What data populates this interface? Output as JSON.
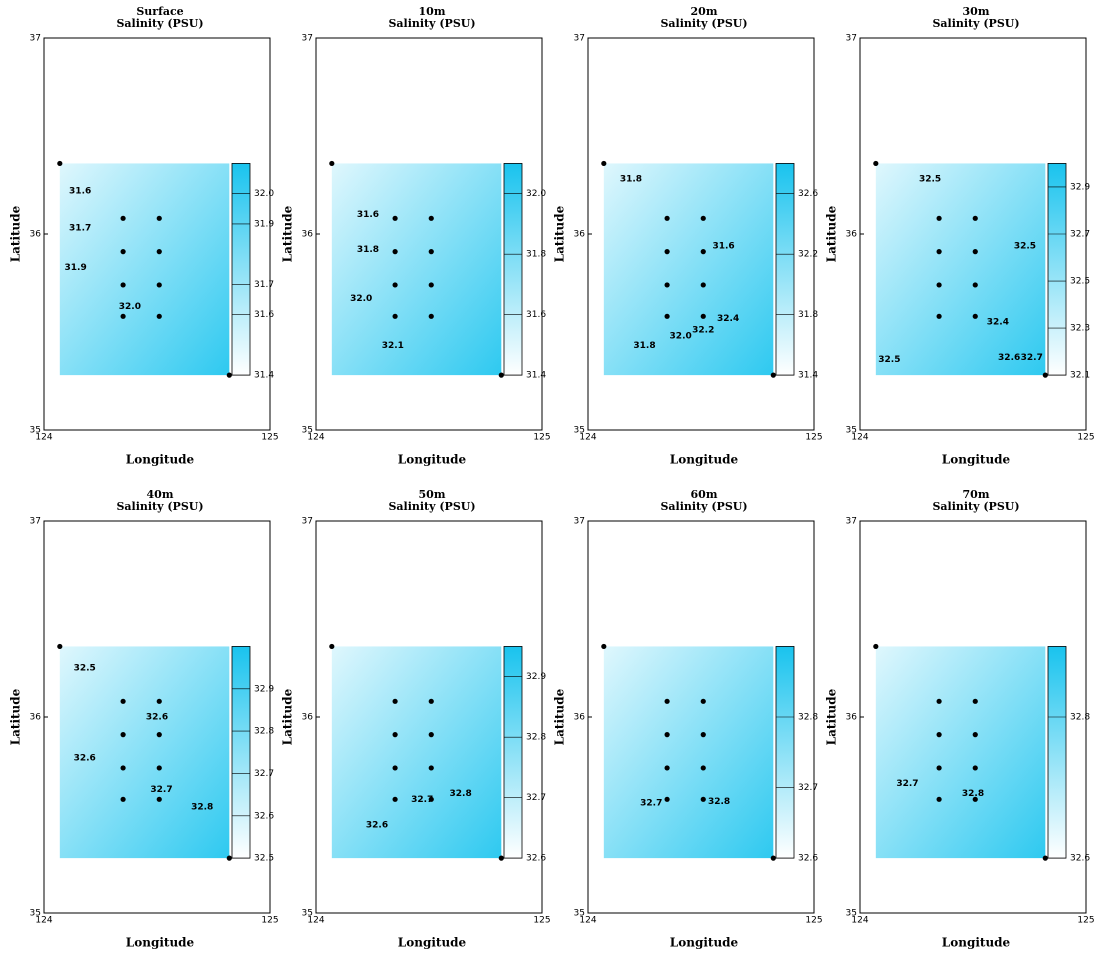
{
  "chart_data": {
    "type": "contour",
    "stations": {
      "x": [
        124.07,
        124.35,
        124.51,
        124.35,
        124.51,
        124.35,
        124.51,
        124.35,
        124.51,
        124.82
      ],
      "y": [
        36.36,
        36.08,
        36.08,
        35.91,
        35.91,
        35.74,
        35.74,
        35.58,
        35.58,
        35.28
      ]
    },
    "panels": [
      {
        "title": "Surface",
        "subtitle": "Salinity (PSU)",
        "xlabel": "Longitude",
        "ylabel": "Latitude",
        "xlim": [
          124,
          125
        ],
        "ylim": [
          35,
          37
        ],
        "xticks": [
          124,
          125
        ],
        "yticks": [
          35,
          36,
          37
        ],
        "clim": [
          31.4,
          32.1
        ],
        "cticks": [
          {
            "value": 32.0,
            "label": "32.0"
          },
          31.9,
          31.7,
          31.6,
          31.4
        ],
        "contour_labels": [
          {
            "value": 31.6,
            "label": "31.6",
            "x": 124.16,
            "y": 36.22
          },
          {
            "value": 31.7,
            "label": "31.7",
            "x": 124.16,
            "y": 36.03
          },
          {
            "value": 31.9,
            "label": "31.9",
            "x": 124.14,
            "y": 35.83
          },
          {
            "value": 32.0,
            "label": "32.0",
            "x": 124.38,
            "y": 35.63
          }
        ]
      },
      {
        "title": "10m",
        "subtitle": "Salinity (PSU)",
        "xlabel": "Longitude",
        "ylabel": "Latitude",
        "xlim": [
          124,
          125
        ],
        "ylim": [
          35,
          37
        ],
        "xticks": [
          124,
          125
        ],
        "yticks": [
          35,
          36,
          37
        ],
        "clim": [
          31.4,
          32.1
        ],
        "cticks": [
          {
            "value": 32.0,
            "label": "32.0"
          },
          31.8,
          31.6,
          31.4
        ],
        "contour_labels": [
          {
            "value": 31.6,
            "label": "31.6",
            "x": 124.23,
            "y": 36.1
          },
          {
            "value": 31.8,
            "label": "31.8",
            "x": 124.23,
            "y": 35.92
          },
          {
            "value": 32.0,
            "label": "32.0",
            "x": 124.2,
            "y": 35.67
          },
          {
            "value": 32.1,
            "label": "32.1",
            "x": 124.34,
            "y": 35.43
          }
        ]
      },
      {
        "title": "20m",
        "subtitle": "Salinity (PSU)",
        "xlabel": "Longitude",
        "ylabel": "Latitude",
        "xlim": [
          124,
          125
        ],
        "ylim": [
          35,
          37
        ],
        "xticks": [
          124,
          125
        ],
        "yticks": [
          35,
          36,
          37
        ],
        "clim": [
          31.4,
          32.8
        ],
        "cticks": [
          32.6,
          32.2,
          31.8,
          31.4
        ],
        "contour_labels": [
          {
            "value": 31.8,
            "label": "31.8",
            "x": 124.19,
            "y": 36.28
          },
          {
            "value": 31.6,
            "label": "31.6",
            "x": 124.6,
            "y": 35.94
          },
          {
            "value": 31.8,
            "label": "31.8",
            "x": 124.25,
            "y": 35.43
          },
          {
            "value": 32.0,
            "label": "32.0",
            "x": 124.41,
            "y": 35.48
          },
          {
            "value": 32.2,
            "label": "32.2",
            "x": 124.51,
            "y": 35.51
          },
          {
            "value": 32.4,
            "label": "32.4",
            "x": 124.62,
            "y": 35.57
          }
        ]
      },
      {
        "title": "30m",
        "subtitle": "Salinity (PSU)",
        "xlabel": "Longitude",
        "ylabel": "Latitude",
        "xlim": [
          124,
          125
        ],
        "ylim": [
          35,
          37
        ],
        "xticks": [
          124,
          125
        ],
        "yticks": [
          35,
          36,
          37
        ],
        "clim": [
          32.1,
          33.0
        ],
        "cticks": [
          32.9,
          32.7,
          32.5,
          32.3,
          32.1
        ],
        "contour_labels": [
          {
            "value": 32.5,
            "label": "32.5",
            "x": 124.31,
            "y": 36.28
          },
          {
            "value": 32.5,
            "label": "32.5",
            "x": 124.73,
            "y": 35.94
          },
          {
            "value": 32.4,
            "label": "32.4",
            "x": 124.61,
            "y": 35.55
          },
          {
            "value": 32.5,
            "label": "32.5",
            "x": 124.13,
            "y": 35.36
          },
          {
            "value": 32.6,
            "label": "32.6",
            "x": 124.66,
            "y": 35.37
          },
          {
            "value": 32.7,
            "label": "32.7",
            "x": 124.76,
            "y": 35.37
          }
        ]
      },
      {
        "title": "40m",
        "subtitle": "Salinity (PSU)",
        "xlabel": "Longitude",
        "ylabel": "Latitude",
        "xlim": [
          124,
          125
        ],
        "ylim": [
          35,
          37
        ],
        "xticks": [
          124,
          125
        ],
        "yticks": [
          35,
          36,
          37
        ],
        "clim": [
          32.5,
          33.0
        ],
        "cticks": [
          32.9,
          32.8,
          32.7,
          32.6,
          32.5
        ],
        "contour_labels": [
          {
            "value": 32.5,
            "label": "32.5",
            "x": 124.18,
            "y": 36.25
          },
          {
            "value": 32.6,
            "label": "32.6",
            "x": 124.5,
            "y": 36.0
          },
          {
            "value": 32.6,
            "label": "32.6",
            "x": 124.18,
            "y": 35.79
          },
          {
            "value": 32.7,
            "label": "32.7",
            "x": 124.52,
            "y": 35.63
          },
          {
            "value": 32.8,
            "label": "32.8",
            "x": 124.7,
            "y": 35.54
          }
        ]
      },
      {
        "title": "50m",
        "subtitle": "Salinity (PSU)",
        "xlabel": "Longitude",
        "ylabel": "Latitude",
        "xlim": [
          124,
          125
        ],
        "ylim": [
          35,
          37
        ],
        "xticks": [
          124,
          125
        ],
        "yticks": [
          35,
          36,
          37
        ],
        "clim": [
          32.6,
          32.95
        ],
        "cticks": [
          32.9,
          32.8,
          32.7,
          32.6
        ],
        "contour_labels": [
          {
            "value": 32.6,
            "label": "32.6",
            "x": 124.27,
            "y": 35.45
          },
          {
            "value": 32.7,
            "label": "32.7",
            "x": 124.47,
            "y": 35.58
          },
          {
            "value": 32.8,
            "label": "32.8",
            "x": 124.64,
            "y": 35.61
          }
        ]
      },
      {
        "title": "60m",
        "subtitle": "Salinity (PSU)",
        "xlabel": "Longitude",
        "ylabel": "Latitude",
        "xlim": [
          124,
          125
        ],
        "ylim": [
          35,
          37
        ],
        "xticks": [
          124,
          125
        ],
        "yticks": [
          35,
          36,
          37
        ],
        "clim": [
          32.6,
          32.9
        ],
        "cticks": [
          32.8,
          32.7,
          32.6
        ],
        "contour_labels": [
          {
            "value": 32.7,
            "label": "32.7",
            "x": 124.28,
            "y": 35.56
          },
          {
            "value": 32.8,
            "label": "32.8",
            "x": 124.58,
            "y": 35.57
          }
        ]
      },
      {
        "title": "70m",
        "subtitle": "Salinity (PSU)",
        "xlabel": "Longitude",
        "ylabel": "Latitude",
        "xlim": [
          124,
          125
        ],
        "ylim": [
          35,
          37
        ],
        "xticks": [
          124,
          125
        ],
        "yticks": [
          35,
          36,
          37
        ],
        "clim": [
          32.6,
          32.9
        ],
        "cticks": [
          32.8,
          32.6
        ],
        "contour_labels": [
          {
            "value": 32.7,
            "label": "32.7",
            "x": 124.21,
            "y": 35.66
          },
          {
            "value": 32.8,
            "label": "32.8",
            "x": 124.5,
            "y": 35.61
          }
        ]
      }
    ]
  }
}
